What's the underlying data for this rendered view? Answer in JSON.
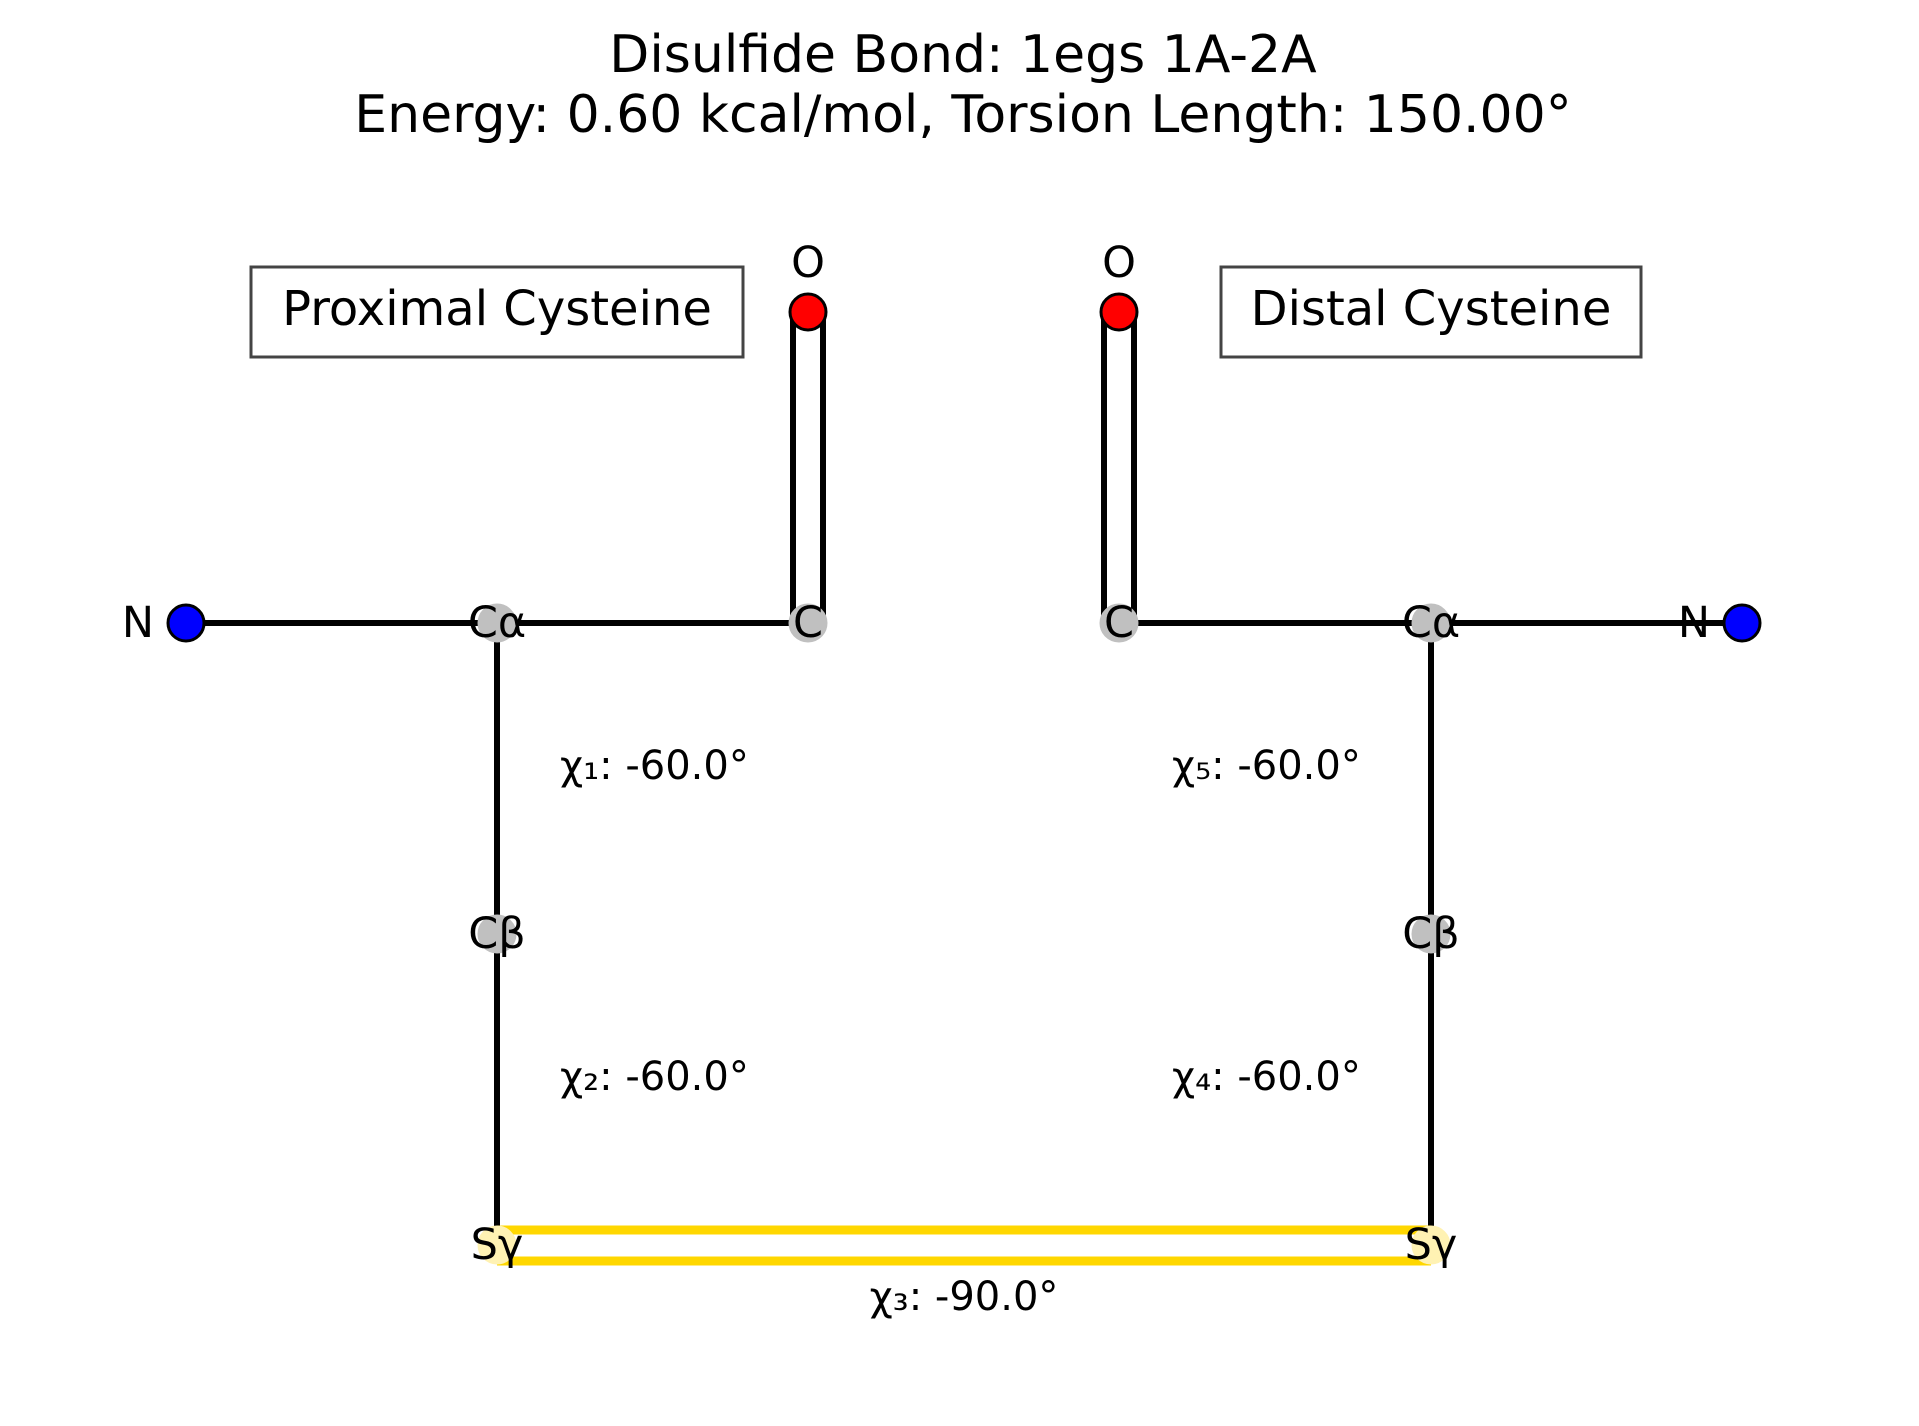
{
  "title": {
    "line1": "Disulfide Bond: 1egs 1A-2A",
    "line2": "Energy: 0.60 kcal/mol, Torsion Length: 150.00°"
  },
  "colors": {
    "nitrogen": "#0000ff",
    "oxygen": "#ff0000",
    "carbon": "#c0c0c0",
    "sulfur": "#fff2b3",
    "ss_bond": "#ffd700",
    "bond": "#000000",
    "box_border": "#444444"
  },
  "proximal": {
    "box_label": "Proximal Cysteine",
    "atoms": {
      "N": "N",
      "CA": "Cα",
      "C": "C",
      "O": "O",
      "CB": "Cβ",
      "SG": "Sγ"
    },
    "chi1": "χ₁: -60.0°",
    "chi2": "χ₂: -60.0°"
  },
  "distal": {
    "box_label": "Distal Cysteine",
    "atoms": {
      "N": "N",
      "CA": "Cα",
      "C": "C",
      "O": "O",
      "CB": "Cβ",
      "SG": "Sγ"
    },
    "chi5": "χ₅: -60.0°",
    "chi4": "χ₄: -60.0°"
  },
  "chi3": "χ₃: -90.0°"
}
